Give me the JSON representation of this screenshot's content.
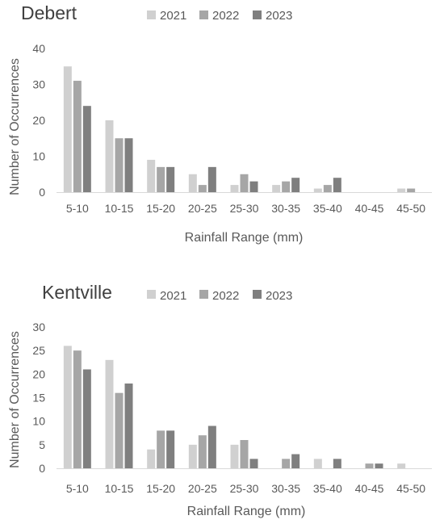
{
  "chart_data": [
    {
      "type": "bar",
      "title": "Debert",
      "xlabel": "Rainfall Range (mm)",
      "ylabel": "Number of Occurrences",
      "ylim": [
        0,
        40
      ],
      "yticks": [
        0,
        10,
        20,
        30,
        40
      ],
      "grid": false,
      "legend_position": "top",
      "categories": [
        "5-10",
        "10-15",
        "15-20",
        "20-25",
        "25-30",
        "30-35",
        "35-40",
        "40-45",
        "45-50"
      ],
      "series": [
        {
          "name": "2021",
          "color": "#d0d0d0",
          "values": [
            35,
            20,
            9,
            5,
            2,
            2,
            1,
            0,
            1
          ]
        },
        {
          "name": "2022",
          "color": "#a6a6a6",
          "values": [
            31,
            15,
            7,
            2,
            5,
            3,
            2,
            0,
            1
          ]
        },
        {
          "name": "2023",
          "color": "#7f7f7f",
          "values": [
            24,
            15,
            7,
            7,
            3,
            4,
            4,
            0,
            0
          ]
        }
      ]
    },
    {
      "type": "bar",
      "title": "Kentville",
      "xlabel": "Rainfall Range (mm)",
      "ylabel": "Number of Occurrences",
      "ylim": [
        0,
        30
      ],
      "yticks": [
        0,
        5,
        10,
        15,
        20,
        25,
        30
      ],
      "grid": false,
      "legend_position": "top",
      "categories": [
        "5-10",
        "10-15",
        "15-20",
        "20-25",
        "25-30",
        "30-35",
        "35-40",
        "40-45",
        "45-50"
      ],
      "series": [
        {
          "name": "2021",
          "color": "#d0d0d0",
          "values": [
            26,
            23,
            4,
            5,
            5,
            0,
            2,
            0,
            1
          ]
        },
        {
          "name": "2022",
          "color": "#a6a6a6",
          "values": [
            25,
            16,
            8,
            7,
            6,
            2,
            0,
            1,
            0
          ]
        },
        {
          "name": "2023",
          "color": "#7f7f7f",
          "values": [
            21,
            18,
            8,
            9,
            2,
            3,
            2,
            1,
            0
          ]
        }
      ]
    }
  ]
}
